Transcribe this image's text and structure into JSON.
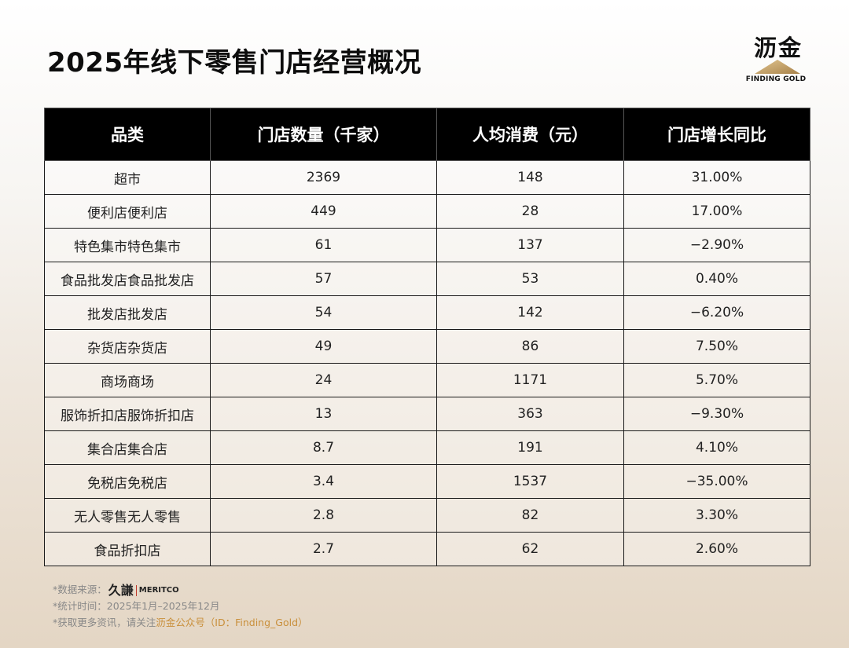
{
  "title": "2025年线下零售门店经营概况",
  "brand": {
    "name": "沥金",
    "subtitle": "FINDING GOLD",
    "accent_color": "#c9a86a",
    "icon": "mountain-triangle-icon"
  },
  "table": {
    "headers": [
      "品类",
      "门店数量（千家）",
      "人均消费（元）",
      "门店增长同比"
    ],
    "rows": [
      [
        "超市",
        "2369",
        "148",
        "31.00%"
      ],
      [
        "便利店便利店",
        "449",
        "28",
        "17.00%"
      ],
      [
        "特色集市特色集市",
        "61",
        "137",
        "−2.90%"
      ],
      [
        "食品批发店食品批发店",
        "57",
        "53",
        "0.40%"
      ],
      [
        "批发店批发店",
        "54",
        "142",
        "−6.20%"
      ],
      [
        "杂货店杂货店",
        "49",
        "86",
        "7.50%"
      ],
      [
        "商场商场",
        "24",
        "1171",
        "5.70%"
      ],
      [
        "服饰折扣店服饰折扣店",
        "13",
        "363",
        "−9.30%"
      ],
      [
        "集合店集合店",
        "8.7",
        "191",
        "4.10%"
      ],
      [
        "免税店免税店",
        "3.4",
        "1537",
        "−35.00%"
      ],
      [
        "无人零售无人零售",
        "2.8",
        "82",
        "3.30%"
      ],
      [
        "食品折扣店",
        "2.7",
        "62",
        "2.60%"
      ]
    ]
  },
  "footer": {
    "source_label": "*数据来源：",
    "source_logo_cn": "久謙",
    "source_logo_en": "MERITCO",
    "period_label": "*统计时间：",
    "period_value": "2025年1月–2025年12月",
    "more_prefix": "*获取更多资讯，请关注",
    "more_highlight": "沥金公众号（ID：Finding_Gold）"
  }
}
